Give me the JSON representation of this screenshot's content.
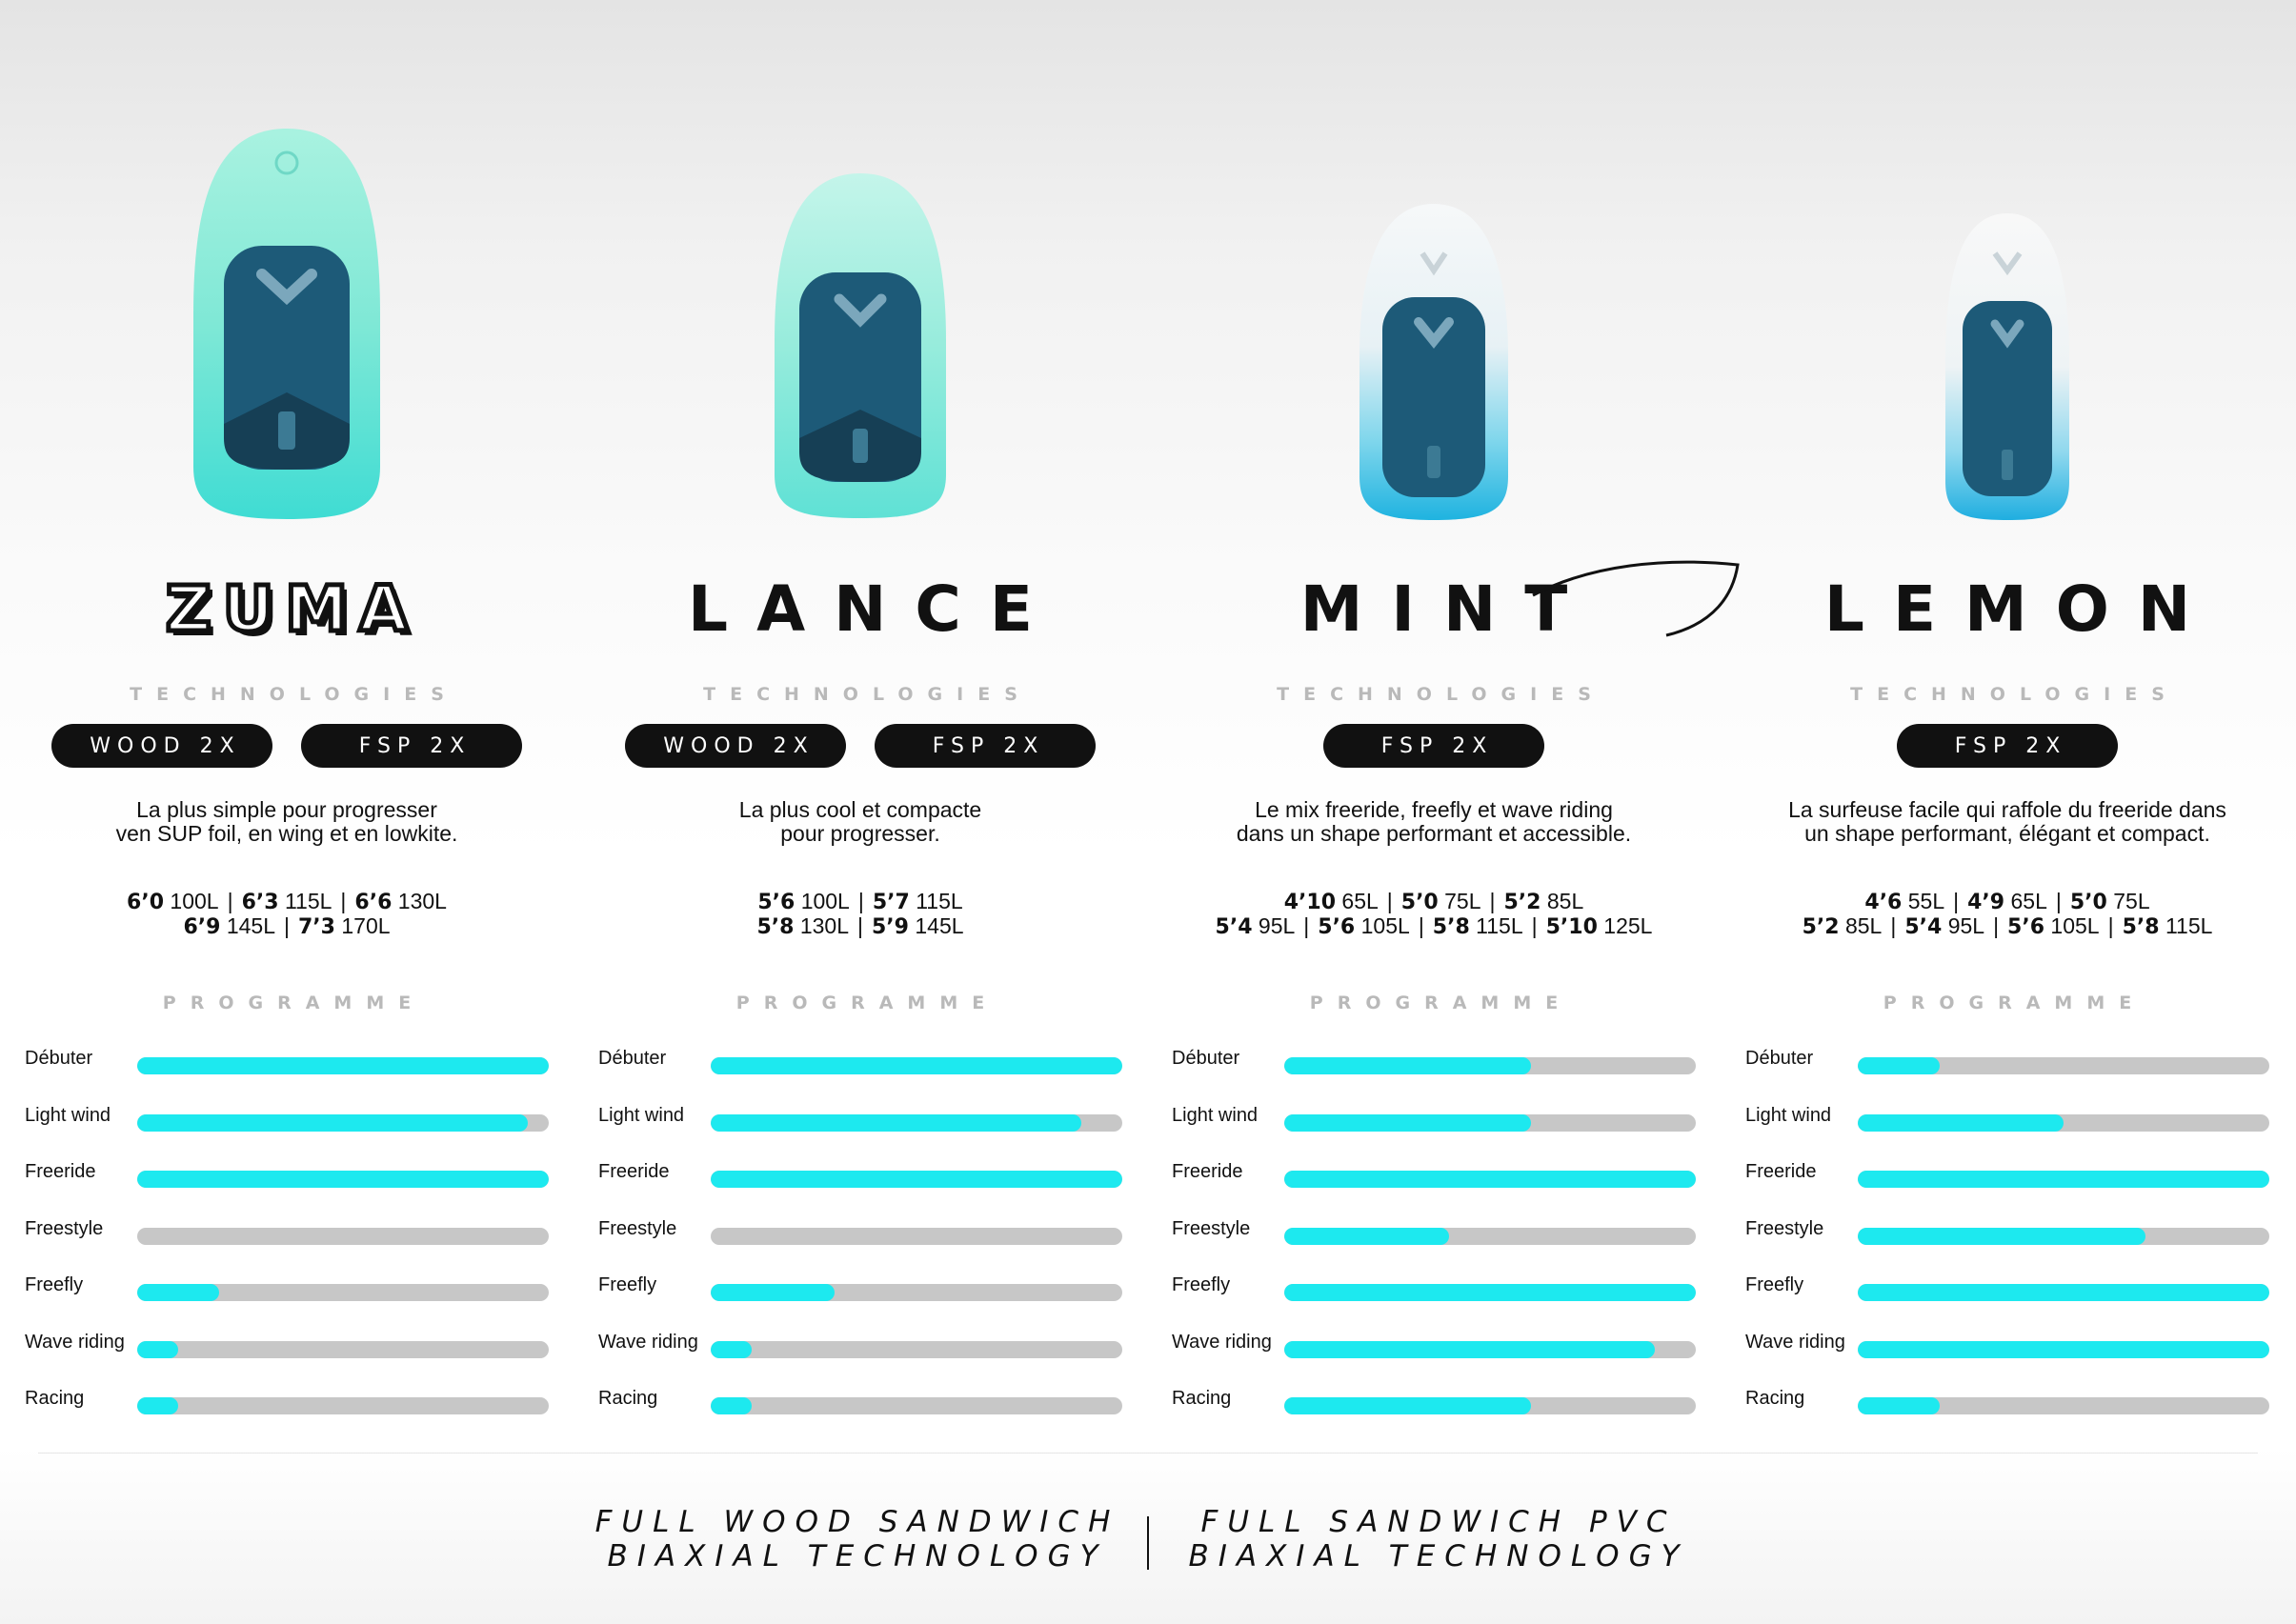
{
  "colors": {
    "accent": "#1de9ef",
    "track": "#c7c7c7",
    "dark": "#111111",
    "label": "#b9b9b9"
  },
  "tech_label": "TECHNOLOGIES",
  "programme_label": "PROGRAMME",
  "programme_categories": [
    "Débuter",
    "Light wind",
    "Freeride",
    "Freestyle",
    "Freefly",
    "Wave riding",
    "Racing"
  ],
  "boards": [
    {
      "name": "ZUMA",
      "technologies": [
        "WOOD 2X",
        "FSP 2X"
      ],
      "description": [
        "La plus simple pour progresser",
        "ven SUP foil, en wing et en lowkite."
      ],
      "sizes": [
        [
          {
            "len": "6’0",
            "vol": "100L"
          },
          {
            "len": "6’3",
            "vol": "115L"
          },
          {
            "len": "6’6",
            "vol": "130L"
          }
        ],
        [
          {
            "len": "6’9",
            "vol": "145L"
          },
          {
            "len": "7’3",
            "vol": "170L"
          }
        ]
      ],
      "programme": [
        1.0,
        0.95,
        1.0,
        0.0,
        0.2,
        0.1,
        0.1
      ]
    },
    {
      "name": "LANCE",
      "technologies": [
        "WOOD 2X",
        "FSP 2X"
      ],
      "description": [
        "La plus cool et compacte",
        "pour progresser."
      ],
      "sizes": [
        [
          {
            "len": "5’6",
            "vol": "100L"
          },
          {
            "len": "5’7",
            "vol": "115L"
          }
        ],
        [
          {
            "len": "5’8",
            "vol": "130L"
          },
          {
            "len": "5’9",
            "vol": "145L"
          }
        ]
      ],
      "programme": [
        1.0,
        0.9,
        1.0,
        0.0,
        0.3,
        0.1,
        0.1
      ]
    },
    {
      "name": "MINT",
      "technologies": [
        "FSP 2X"
      ],
      "description": [
        "Le mix freeride, freefly et wave riding",
        "dans un shape performant et accessible."
      ],
      "sizes": [
        [
          {
            "len": "4’10",
            "vol": "65L"
          },
          {
            "len": "5’0",
            "vol": "75L"
          },
          {
            "len": "5’2",
            "vol": "85L"
          }
        ],
        [
          {
            "len": "5’4",
            "vol": "95L"
          },
          {
            "len": "5’6",
            "vol": "105L"
          },
          {
            "len": "5’8",
            "vol": "115L"
          },
          {
            "len": "5’10",
            "vol": "125L"
          }
        ]
      ],
      "programme": [
        0.6,
        0.6,
        1.0,
        0.4,
        1.0,
        0.9,
        0.6
      ]
    },
    {
      "name": "LEMON",
      "technologies": [
        "FSP 2X"
      ],
      "description": [
        "La surfeuse facile qui raffole du freeride dans",
        "un shape performant, élégant et compact."
      ],
      "sizes": [
        [
          {
            "len": "4’6",
            "vol": "55L"
          },
          {
            "len": "4’9",
            "vol": "65L"
          },
          {
            "len": "5’0",
            "vol": "75L"
          }
        ],
        [
          {
            "len": "5’2",
            "vol": "85L"
          },
          {
            "len": "5’4",
            "vol": "95L"
          },
          {
            "len": "5’6",
            "vol": "105L"
          },
          {
            "len": "5’8",
            "vol": "115L"
          }
        ]
      ],
      "programme": [
        0.2,
        0.5,
        1.0,
        0.7,
        1.0,
        1.0,
        0.2
      ]
    }
  ],
  "footer": {
    "left": [
      "FULL WOOD SANDWICH",
      "BIAXIAL TECHNOLOGY"
    ],
    "right": [
      "FULL SANDWICH PVC",
      "BIAXIAL TECHNOLOGY"
    ]
  }
}
